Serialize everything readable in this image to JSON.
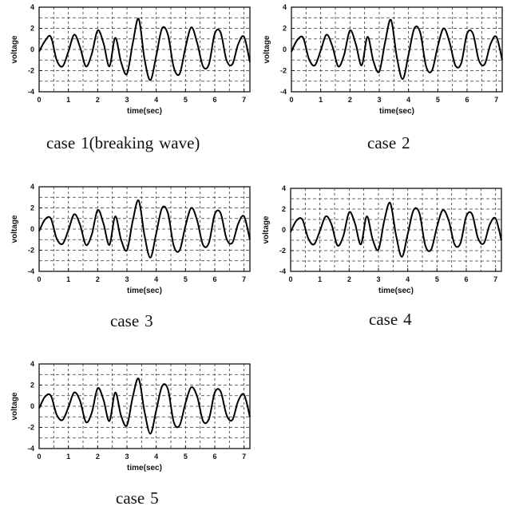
{
  "chart_data": [
    {
      "type": "line",
      "caption_text": "case",
      "caption_number": "1(breaking",
      "caption_suffix": "wave)",
      "xlabel": "time(sec)",
      "ylabel": "voltage",
      "xlim": [
        0,
        7.2
      ],
      "ylim": [
        -4,
        4
      ],
      "x_ticks": [
        "0",
        "1",
        "2",
        "3",
        "4",
        "5",
        "6",
        "7"
      ],
      "y_ticks": [
        "4",
        "2",
        "0",
        "-2",
        "-4"
      ],
      "grid": true,
      "x": [
        0,
        0.2,
        0.4,
        0.6,
        0.8,
        1.0,
        1.2,
        1.4,
        1.6,
        1.8,
        2.0,
        2.2,
        2.4,
        2.6,
        2.8,
        3.0,
        3.2,
        3.4,
        3.6,
        3.8,
        4.0,
        4.2,
        4.4,
        4.6,
        4.8,
        5.0,
        5.2,
        5.4,
        5.6,
        5.8,
        6.0,
        6.2,
        6.4,
        6.6,
        6.8,
        7.0,
        7.2
      ],
      "y": [
        -0.2,
        0.8,
        1.2,
        -1.0,
        -1.6,
        -0.2,
        1.4,
        0.2,
        -1.6,
        -0.4,
        1.8,
        0.6,
        -1.6,
        1.1,
        -1.2,
        -2.3,
        0.6,
        2.9,
        -0.9,
        -2.9,
        -0.6,
        2.0,
        1.4,
        -1.7,
        -2.3,
        0.2,
        2.1,
        0.6,
        -1.6,
        -1.4,
        1.5,
        1.6,
        -1.0,
        -1.4,
        0.5,
        1.2,
        -1.2
      ]
    },
    {
      "type": "line",
      "caption_text": "case",
      "caption_number": "2",
      "caption_suffix": "",
      "xlabel": "time(sec)",
      "ylabel": "voltage",
      "xlim": [
        0,
        7.2
      ],
      "ylim": [
        -4,
        4
      ],
      "x_ticks": [
        "0",
        "1",
        "2",
        "3",
        "4",
        "5",
        "6",
        "7"
      ],
      "y_ticks": [
        "4",
        "2",
        "0",
        "-2",
        "-4"
      ],
      "grid": true,
      "x": [
        0,
        0.2,
        0.4,
        0.6,
        0.8,
        1.0,
        1.2,
        1.4,
        1.6,
        1.8,
        2.0,
        2.2,
        2.4,
        2.6,
        2.8,
        3.0,
        3.2,
        3.4,
        3.6,
        3.8,
        4.0,
        4.2,
        4.4,
        4.6,
        4.8,
        5.0,
        5.2,
        5.4,
        5.6,
        5.8,
        6.0,
        6.2,
        6.4,
        6.6,
        6.8,
        7.0,
        7.2
      ],
      "y": [
        -0.2,
        0.9,
        1.1,
        -0.9,
        -1.5,
        -0.1,
        1.4,
        0.3,
        -1.6,
        -0.5,
        1.8,
        0.5,
        -1.5,
        1.2,
        -1.1,
        -2.1,
        0.7,
        2.8,
        -0.7,
        -2.8,
        -0.5,
        2.0,
        1.6,
        -1.6,
        -2.0,
        0.3,
        2.0,
        0.7,
        -1.5,
        -1.3,
        1.5,
        1.5,
        -1.0,
        -1.4,
        0.5,
        1.2,
        -1.0
      ]
    },
    {
      "type": "line",
      "caption_text": "case",
      "caption_number": "3",
      "caption_suffix": "",
      "xlabel": "time(sec)",
      "ylabel": "voltage",
      "xlim": [
        0,
        7.2
      ],
      "ylim": [
        -4,
        4
      ],
      "x_ticks": [
        "0",
        "1",
        "2",
        "3",
        "4",
        "5",
        "6",
        "7"
      ],
      "y_ticks": [
        "4",
        "2",
        "0",
        "-2",
        "-4"
      ],
      "grid": true,
      "x": [
        0,
        0.2,
        0.4,
        0.6,
        0.8,
        1.0,
        1.2,
        1.4,
        1.6,
        1.8,
        2.0,
        2.2,
        2.4,
        2.6,
        2.8,
        3.0,
        3.2,
        3.4,
        3.6,
        3.8,
        4.0,
        4.2,
        4.4,
        4.6,
        4.8,
        5.0,
        5.2,
        5.4,
        5.6,
        5.8,
        6.0,
        6.2,
        6.4,
        6.6,
        6.8,
        7.0,
        7.2
      ],
      "y": [
        -0.2,
        0.9,
        1.0,
        -0.9,
        -1.4,
        -0.1,
        1.4,
        0.4,
        -1.5,
        -0.5,
        1.8,
        0.5,
        -1.5,
        1.2,
        -1.0,
        -2.0,
        0.8,
        2.7,
        -0.6,
        -2.7,
        -0.4,
        2.0,
        1.5,
        -1.6,
        -2.0,
        0.3,
        2.0,
        0.8,
        -1.5,
        -1.3,
        1.4,
        1.5,
        -0.9,
        -1.3,
        0.5,
        1.2,
        -1.0
      ]
    },
    {
      "type": "line",
      "caption_text": "case",
      "caption_number": "4",
      "caption_suffix": "",
      "xlabel": "time(sec)",
      "ylabel": "voltage",
      "xlim": [
        0,
        7.2
      ],
      "ylim": [
        -4,
        4
      ],
      "x_ticks": [
        "0",
        "1",
        "2",
        "3",
        "4",
        "5",
        "6",
        "7"
      ],
      "y_ticks": [
        "4",
        "2",
        "0",
        "-2",
        "-4"
      ],
      "grid": true,
      "x": [
        0,
        0.2,
        0.4,
        0.6,
        0.8,
        1.0,
        1.2,
        1.4,
        1.6,
        1.8,
        2.0,
        2.2,
        2.4,
        2.6,
        2.8,
        3.0,
        3.2,
        3.4,
        3.6,
        3.8,
        4.0,
        4.2,
        4.4,
        4.6,
        4.8,
        5.0,
        5.2,
        5.4,
        5.6,
        5.8,
        6.0,
        6.2,
        6.4,
        6.6,
        6.8,
        7.0,
        7.2
      ],
      "y": [
        -0.2,
        0.9,
        1.0,
        -0.8,
        -1.4,
        -0.1,
        1.3,
        0.5,
        -1.5,
        -0.6,
        1.7,
        0.6,
        -1.4,
        1.3,
        -0.9,
        -1.9,
        0.9,
        2.6,
        -0.5,
        -2.6,
        -0.4,
        1.9,
        1.6,
        -1.5,
        -1.9,
        0.3,
        1.9,
        0.9,
        -1.4,
        -1.3,
        1.3,
        1.5,
        -0.8,
        -1.3,
        0.5,
        1.1,
        -1.0
      ]
    },
    {
      "type": "line",
      "caption_text": "case",
      "caption_number": "5",
      "caption_suffix": "",
      "xlabel": "time(sec)",
      "ylabel": "voltage",
      "xlim": [
        0,
        7.2
      ],
      "ylim": [
        -4,
        4
      ],
      "x_ticks": [
        "0",
        "1",
        "2",
        "3",
        "4",
        "5",
        "6",
        "7"
      ],
      "y_ticks": [
        "4",
        "2",
        "0",
        "-2",
        "-4"
      ],
      "grid": true,
      "x": [
        0,
        0.2,
        0.4,
        0.6,
        0.8,
        1.0,
        1.2,
        1.4,
        1.6,
        1.8,
        2.0,
        2.2,
        2.4,
        2.6,
        2.8,
        3.0,
        3.2,
        3.4,
        3.6,
        3.8,
        4.0,
        4.2,
        4.4,
        4.6,
        4.8,
        5.0,
        5.2,
        5.4,
        5.6,
        5.8,
        6.0,
        6.2,
        6.4,
        6.6,
        6.8,
        7.0,
        7.2
      ],
      "y": [
        -0.2,
        0.9,
        1.0,
        -0.8,
        -1.3,
        -0.1,
        1.3,
        0.5,
        -1.5,
        -0.6,
        1.7,
        0.6,
        -1.4,
        1.3,
        -0.9,
        -1.8,
        0.9,
        2.6,
        -0.5,
        -2.6,
        -0.4,
        1.9,
        1.6,
        -1.5,
        -1.8,
        0.3,
        1.8,
        0.9,
        -1.4,
        -1.2,
        1.3,
        1.4,
        -0.8,
        -1.3,
        0.5,
        1.1,
        -1.0
      ]
    }
  ]
}
